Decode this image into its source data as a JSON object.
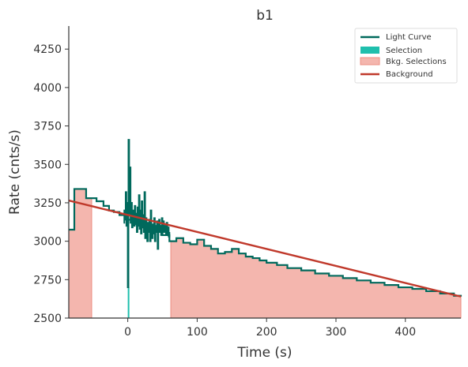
{
  "chart_data": {
    "type": "line",
    "title": "b1",
    "xlabel": "Time (s)",
    "ylabel": "Rate (cnts/s)",
    "xlim": [
      -85,
      480
    ],
    "ylim": [
      2500,
      4400
    ],
    "x_ticks": [
      0,
      100,
      200,
      300,
      400
    ],
    "y_ticks": [
      2500,
      2750,
      3000,
      3250,
      3500,
      3750,
      4000,
      4250
    ],
    "grid": false,
    "legend_position": "top-right",
    "legend": [
      {
        "label": "Light Curve",
        "kind": "line",
        "color": "#00695c"
      },
      {
        "label": "Selection",
        "kind": "patch",
        "color": "#1fbfad"
      },
      {
        "label": "Bkg. Selections",
        "kind": "patch",
        "color": "#f4b6ae"
      },
      {
        "label": "Background",
        "kind": "line",
        "color": "#c0392b"
      }
    ],
    "series": [
      {
        "name": "Light Curve",
        "style": "step",
        "color": "#00695c",
        "x": [
          -85,
          -77,
          -60,
          -45,
          -35,
          -27,
          -20,
          -12,
          0,
          10,
          20,
          30,
          40,
          50,
          60,
          70,
          80,
          90,
          100,
          110,
          120,
          130,
          140,
          150,
          160,
          170,
          180,
          190,
          200,
          215,
          230,
          250,
          270,
          290,
          310,
          330,
          350,
          370,
          390,
          410,
          430,
          450,
          470,
          480
        ],
        "y": [
          3075,
          3340,
          3280,
          3260,
          3230,
          3200,
          3190,
          3170,
          3140,
          3110,
          3090,
          3080,
          3060,
          3040,
          3000,
          3020,
          2990,
          2980,
          3010,
          2970,
          2950,
          2920,
          2930,
          2950,
          2920,
          2900,
          2890,
          2875,
          2860,
          2845,
          2825,
          2810,
          2790,
          2775,
          2760,
          2745,
          2730,
          2715,
          2700,
          2690,
          2675,
          2660,
          2645,
          2640
        ]
      },
      {
        "name": "Background",
        "style": "line",
        "color": "#c0392b",
        "x": [
          -85,
          480
        ],
        "y": [
          3265,
          2640
        ]
      }
    ],
    "light_curve_burst": {
      "x": [
        -6,
        -5,
        -4,
        -3,
        -2,
        -1,
        0,
        1,
        2,
        3,
        4,
        5,
        6,
        7,
        8,
        9,
        10,
        11,
        12,
        13,
        14,
        15,
        16,
        17,
        18,
        19,
        20,
        21,
        22,
        23,
        24,
        25,
        26,
        27,
        28,
        29,
        30,
        31,
        32,
        33,
        34,
        35,
        36,
        37,
        38,
        39,
        40,
        41,
        42,
        43,
        44,
        45,
        46,
        47,
        48,
        49,
        50,
        51,
        52,
        53,
        54,
        55,
        56,
        57,
        58,
        59,
        60
      ],
      "y": [
        3120,
        3200,
        3140,
        3320,
        3100,
        3250,
        2700,
        3660,
        3180,
        3480,
        3120,
        3250,
        3090,
        3200,
        3150,
        3100,
        3230,
        3120,
        3180,
        3060,
        3220,
        3100,
        3300,
        3080,
        3200,
        3050,
        3260,
        3090,
        3170,
        3060,
        3320,
        3020,
        3150,
        3080,
        3000,
        3120,
        3060,
        3140,
        3000,
        3200,
        3080,
        3020,
        3110,
        3050,
        3150,
        3000,
        3100,
        3060,
        3130,
        2950,
        3080,
        3140,
        3060,
        3100,
        3040,
        3150,
        3070,
        3130,
        3060,
        3100,
        3080,
        3040,
        3120,
        3050,
        3090,
        3030,
        3060
      ]
    },
    "selection": {
      "from": 0,
      "to": 1
    },
    "bkg_selections": [
      {
        "from": -85,
        "to": -52
      },
      {
        "from": 62,
        "to": 480
      }
    ]
  }
}
